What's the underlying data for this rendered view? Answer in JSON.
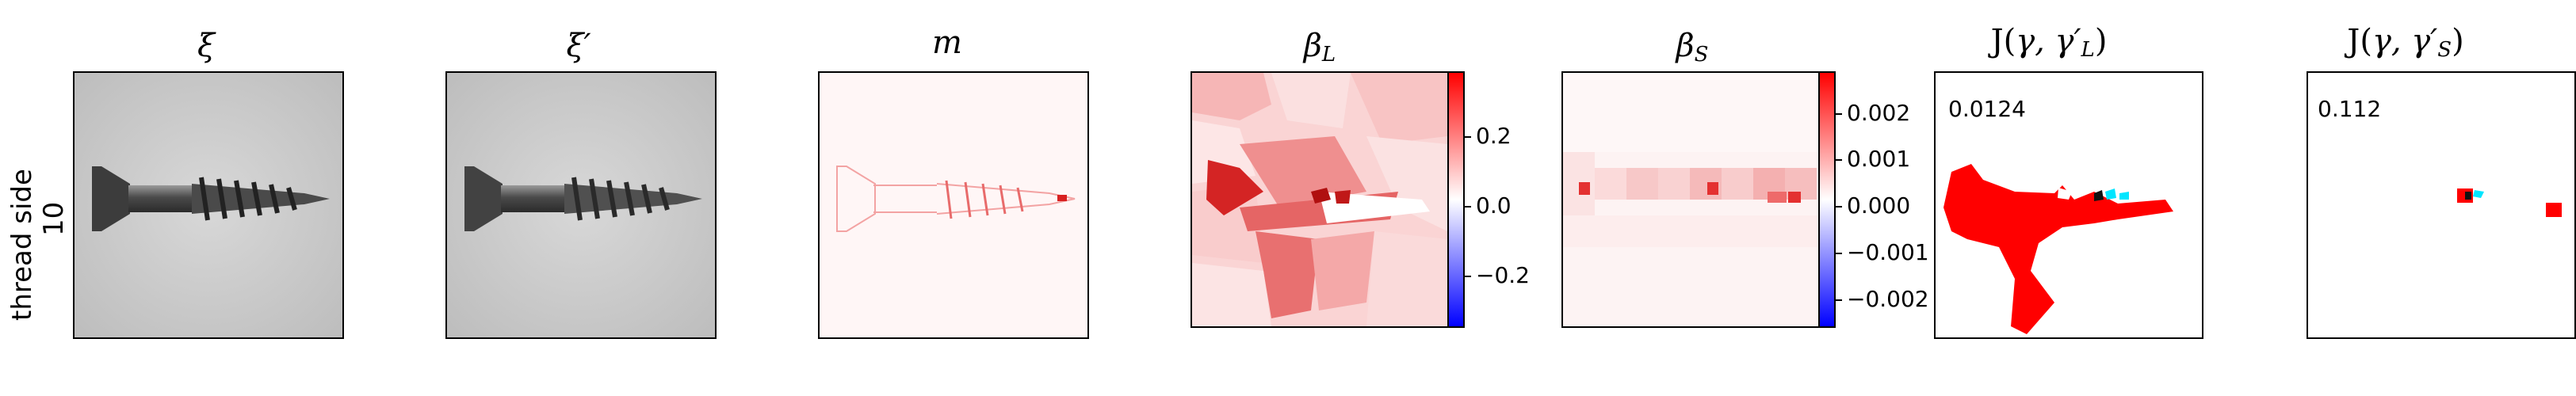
{
  "row_label": {
    "line1": "thread side",
    "line2": "10"
  },
  "panels": [
    {
      "id": "xi",
      "title": "ξ"
    },
    {
      "id": "xi_prime",
      "title": "ξ′"
    },
    {
      "id": "m",
      "title": "m"
    },
    {
      "id": "beta_l",
      "title_main": "β",
      "title_sub": "L"
    },
    {
      "id": "beta_s",
      "title_main": "β",
      "title_sub": "S"
    },
    {
      "id": "j_l",
      "title_pre": "J(",
      "title_gamma": "γ, γ′",
      "title_sub": "L",
      "title_post": ")",
      "score": "0.0124"
    },
    {
      "id": "j_s",
      "title_pre": "J(",
      "title_gamma": "γ, γ′",
      "title_sub": "S",
      "title_post": ")",
      "score": "0.112"
    }
  ],
  "colorbar_beta_l": {
    "ticks": [
      "0.2",
      "0.0",
      "−0.2"
    ],
    "colors": {
      "top": "#ff0000",
      "mid": "#ffffff",
      "bottom": "#0000ff"
    }
  },
  "colorbar_beta_s": {
    "ticks": [
      "0.002",
      "0.001",
      "0.000",
      "−0.001",
      "−0.002"
    ],
    "colors": {
      "top": "#ff0000",
      "mid": "#ffffff",
      "bottom": "#0000ff"
    }
  }
}
